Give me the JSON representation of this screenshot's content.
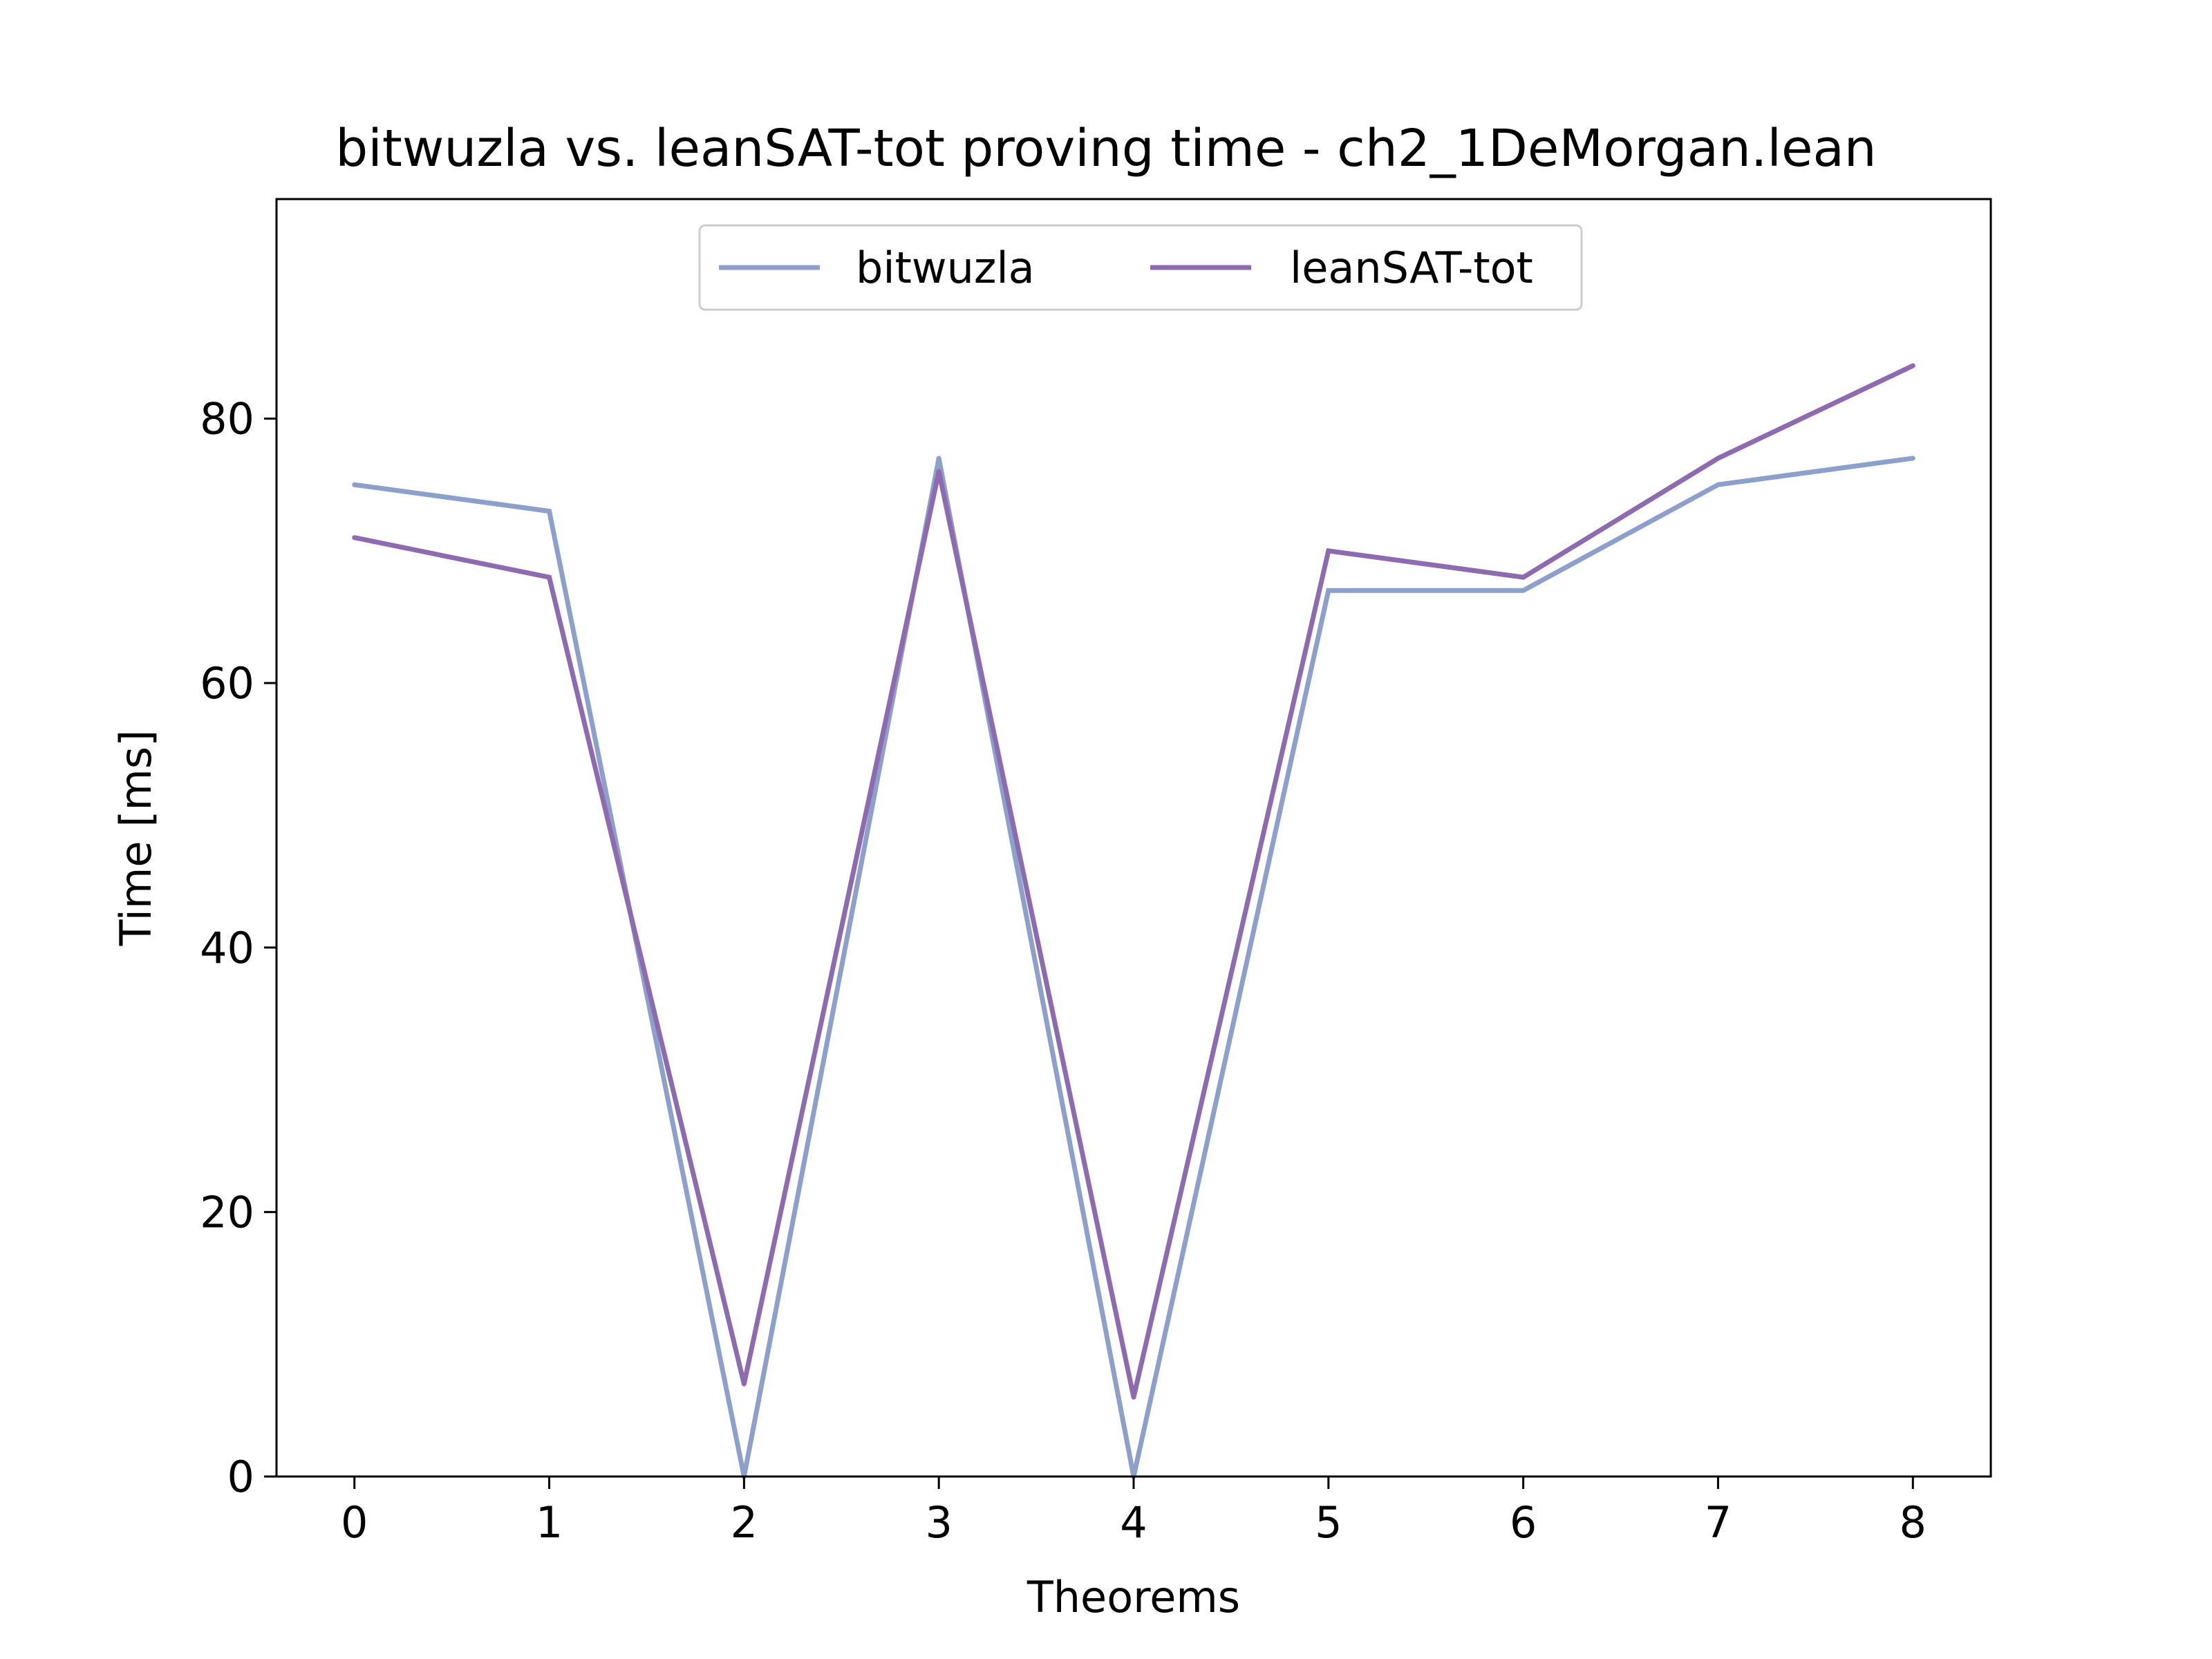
{
  "chart_data": {
    "type": "line",
    "title": "bitwuzla vs. leanSAT-tot proving time - ch2_1DeMorgan.lean",
    "xlabel": "Theorems",
    "ylabel": "Time [ms]",
    "x": [
      0,
      1,
      2,
      3,
      4,
      5,
      6,
      7,
      8
    ],
    "xlim": [
      -0.4,
      8.4
    ],
    "ylim": [
      0,
      96.6
    ],
    "xticks": [
      0,
      1,
      2,
      3,
      4,
      5,
      6,
      7,
      8
    ],
    "yticks": [
      0,
      20,
      40,
      60,
      80
    ],
    "grid": false,
    "legend_position": "upper center",
    "series": [
      {
        "name": "bitwuzla",
        "color": "#8da0cb",
        "values": [
          75,
          73,
          0,
          77,
          0,
          67,
          67,
          75,
          77
        ]
      },
      {
        "name": "leanSAT-tot",
        "color": "#8e6bb0",
        "values": [
          71,
          68,
          7,
          76,
          6,
          70,
          68,
          77,
          84
        ]
      }
    ]
  }
}
